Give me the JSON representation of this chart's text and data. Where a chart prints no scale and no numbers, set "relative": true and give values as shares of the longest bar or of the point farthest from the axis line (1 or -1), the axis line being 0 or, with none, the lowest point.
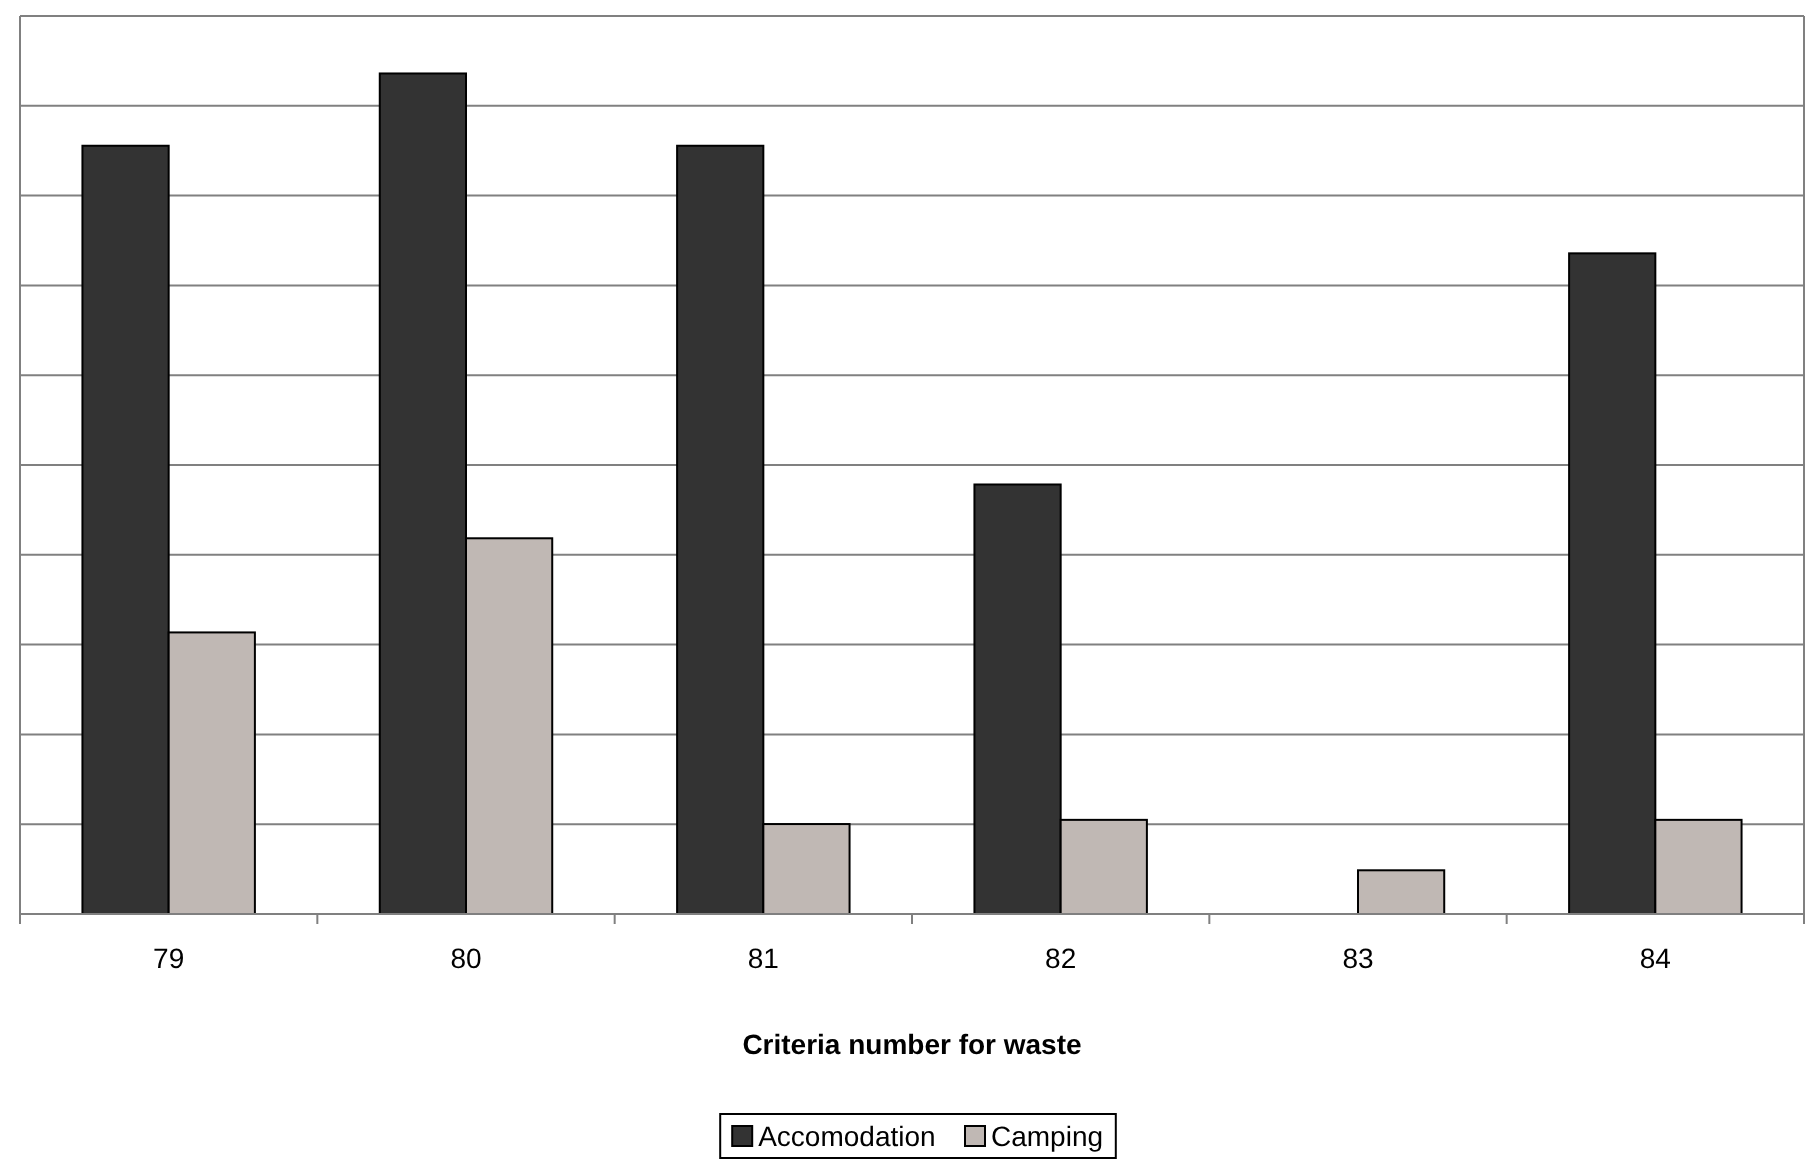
{
  "chart_data": {
    "type": "bar",
    "xlabel": "Criteria number for waste",
    "categories": [
      "79",
      "80",
      "81",
      "82",
      "83",
      "84"
    ],
    "relative": true,
    "grid": "y",
    "legend": "bottom",
    "series": [
      {
        "name": "Accomodation",
        "color": "#333333",
        "values": [
          0.914,
          1,
          0.914,
          0.511,
          0,
          0.786
        ]
      },
      {
        "name": "Camping",
        "color": "#c0b8b4",
        "values": [
          0.335,
          0.447,
          0.107,
          0.112,
          0.052,
          0.112
        ]
      }
    ]
  }
}
